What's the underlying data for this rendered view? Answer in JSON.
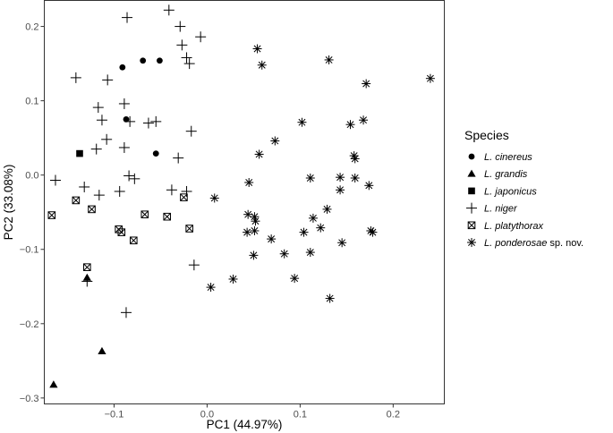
{
  "chart_data": {
    "type": "scatter",
    "xlabel": "PC1 (44.97%)",
    "ylabel": "PC2 (33.08%)",
    "xlim": [
      -0.175,
      0.255
    ],
    "ylim": [
      -0.308,
      0.235
    ],
    "x_ticks": [
      -0.1,
      0.0,
      0.1,
      0.2
    ],
    "x_tick_labels": [
      "−0.1",
      "0.0",
      "0.1",
      "0.2"
    ],
    "y_ticks": [
      0.2,
      0.1,
      0.0,
      -0.1,
      -0.2,
      -0.3
    ],
    "y_tick_labels": [
      "0.2",
      "0.1",
      "0.0",
      "−0.1",
      "−0.2",
      "−0.3"
    ],
    "grid": false,
    "legend": {
      "title": "Species",
      "placement": "right",
      "entries": [
        {
          "italic": "L. cinereus",
          "suffix": "",
          "marker": "circle"
        },
        {
          "italic": "L. grandis",
          "suffix": "",
          "marker": "triangle"
        },
        {
          "italic": "L. japonicus",
          "suffix": "",
          "marker": "square"
        },
        {
          "italic": "L. niger",
          "suffix": "",
          "marker": "plus"
        },
        {
          "italic": "L. platythorax",
          "suffix": "",
          "marker": "boxcross"
        },
        {
          "italic": "L. ponderosae",
          "suffix": " sp. nov.",
          "marker": "asterisk"
        }
      ]
    },
    "series": [
      {
        "name": "L. cinereus",
        "marker": "circle",
        "x": [
          -0.091,
          -0.069,
          -0.051,
          -0.087,
          -0.055
        ],
        "y": [
          0.145,
          0.154,
          0.154,
          0.075,
          0.029
        ]
      },
      {
        "name": "L. grandis",
        "marker": "triangle",
        "x": [
          -0.129,
          -0.113,
          -0.165
        ],
        "y": [
          -0.138,
          -0.237,
          -0.282
        ]
      },
      {
        "name": "L. japonicus",
        "marker": "square",
        "x": [
          -0.137
        ],
        "y": [
          0.029
        ]
      },
      {
        "name": "L. niger",
        "marker": "plus",
        "x": [
          -0.041,
          -0.086,
          -0.029,
          -0.007,
          -0.027,
          -0.022,
          -0.019,
          -0.141,
          -0.107,
          -0.117,
          -0.089,
          -0.113,
          -0.063,
          -0.055,
          -0.083,
          -0.108,
          -0.017,
          -0.119,
          -0.089,
          -0.031,
          -0.163,
          -0.084,
          -0.132,
          -0.078,
          -0.116,
          -0.094,
          -0.038,
          -0.022,
          -0.014,
          -0.129,
          -0.087
        ],
        "y": [
          0.222,
          0.212,
          0.2,
          0.186,
          0.175,
          0.158,
          0.15,
          0.131,
          0.128,
          0.091,
          0.096,
          0.074,
          0.07,
          0.072,
          0.072,
          0.048,
          0.059,
          0.035,
          0.037,
          0.023,
          -0.007,
          -0.001,
          -0.016,
          -0.005,
          -0.027,
          -0.022,
          -0.02,
          -0.022,
          -0.121,
          -0.143,
          -0.185
        ]
      },
      {
        "name": "L. platythorax",
        "marker": "boxcross",
        "x": [
          -0.167,
          -0.141,
          -0.124,
          -0.067,
          -0.043,
          -0.025,
          -0.095,
          -0.092,
          -0.079,
          -0.019,
          -0.129
        ],
        "y": [
          -0.054,
          -0.034,
          -0.046,
          -0.053,
          -0.056,
          -0.03,
          -0.073,
          -0.077,
          -0.088,
          -0.072,
          -0.124
        ]
      },
      {
        "name": "L. ponderosae sp. nov.",
        "marker": "asterisk",
        "x": [
          0.054,
          0.059,
          0.131,
          0.24,
          0.171,
          0.102,
          0.168,
          0.154,
          0.073,
          0.158,
          0.159,
          0.056,
          0.111,
          0.143,
          0.159,
          0.143,
          0.045,
          0.174,
          0.008,
          0.044,
          0.051,
          0.052,
          0.043,
          0.051,
          0.114,
          0.129,
          0.176,
          0.178,
          0.069,
          0.104,
          0.122,
          0.145,
          0.083,
          0.111,
          0.05,
          0.094,
          0.028,
          0.004,
          0.132
        ],
        "y": [
          0.17,
          0.148,
          0.155,
          0.13,
          0.123,
          0.071,
          0.074,
          0.068,
          0.046,
          0.026,
          0.022,
          0.028,
          -0.004,
          -0.003,
          -0.004,
          -0.02,
          -0.01,
          -0.014,
          -0.031,
          -0.053,
          -0.056,
          -0.062,
          -0.077,
          -0.075,
          -0.058,
          -0.046,
          -0.075,
          -0.077,
          -0.086,
          -0.077,
          -0.071,
          -0.091,
          -0.106,
          -0.104,
          -0.108,
          -0.139,
          -0.14,
          -0.151,
          -0.166
        ]
      }
    ]
  }
}
